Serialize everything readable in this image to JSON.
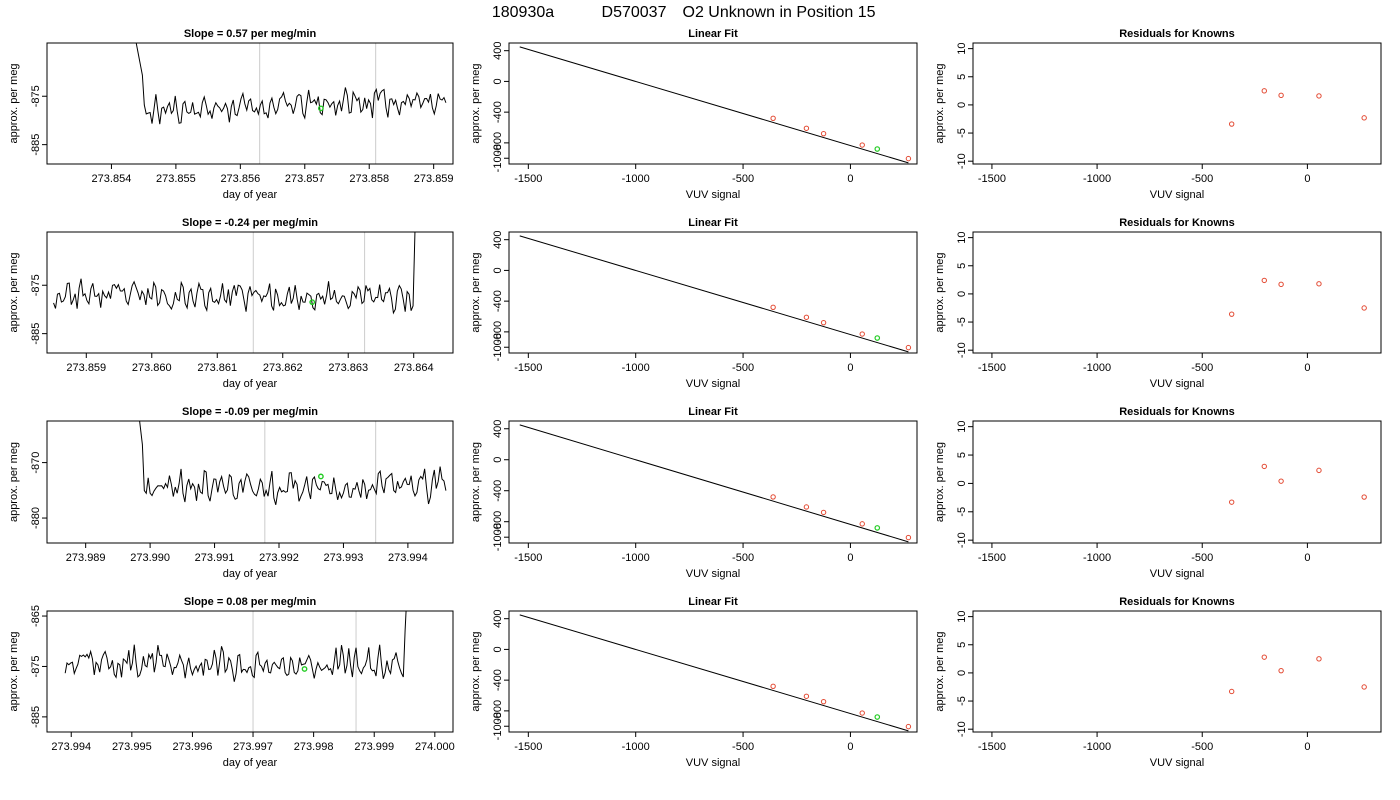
{
  "page": {
    "title_parts": [
      "180930a",
      "D570037",
      "O2 Unknown in Position  15"
    ]
  },
  "colors": {
    "trace": "#000000",
    "known_point": "#e34a33",
    "unknown_point": "#22cc22",
    "vline": "#cccccc"
  },
  "chart_data": [
    {
      "type": "line",
      "row": 1,
      "title": "Slope =  0.57  per meg/min",
      "xlabel": "day of year",
      "ylabel": "approx. per meg",
      "xlim": [
        273.853,
        273.8593
      ],
      "ylim": [
        -889,
        -864
      ],
      "xticks": [
        "273.854",
        "273.855",
        "273.856",
        "273.857",
        "273.858",
        "273.859"
      ],
      "yticks": [
        "-885",
        "-875"
      ],
      "vlines": [
        273.8563,
        273.8581
      ],
      "unknown_marker": [
        273.85725,
        -877.5
      ],
      "trace": {
        "start": 273.8537,
        "end": 273.8592,
        "step": 3e-05,
        "jump_at": 273.8545,
        "high": -860,
        "base": -878.5,
        "drift": 3.0,
        "noise": 2.3,
        "seed": 11,
        "jump_side": "left"
      },
      "grid": false
    },
    {
      "type": "scatter",
      "row": 1,
      "title": "Linear Fit",
      "xlabel": "VUV signal",
      "ylabel": "approx. per meg",
      "xlim": [
        -1590,
        310
      ],
      "ylim": [
        -1075,
        500
      ],
      "xticks": [
        "-1500",
        "-1000",
        "-500",
        "0"
      ],
      "yticks": [
        "-1000",
        "-800",
        "-400",
        "0",
        "400"
      ],
      "fit_line": [
        [
          -1540,
          450
        ],
        [
          270,
          -1060
        ]
      ],
      "knowns": [
        [
          -360,
          -480
        ],
        [
          -205,
          -610
        ],
        [
          -125,
          -680
        ],
        [
          55,
          -828
        ],
        [
          270,
          -1005
        ]
      ],
      "unknowns": [
        [
          125,
          -880
        ]
      ],
      "grid": false
    },
    {
      "type": "scatter",
      "row": 1,
      "title": "Residuals for Knowns",
      "xlabel": "VUV signal",
      "ylabel": "approx. per meg",
      "xlim": [
        -1590,
        350
      ],
      "ylim": [
        -10.5,
        11
      ],
      "xticks": [
        "-1500",
        "-1000",
        "-500",
        "0"
      ],
      "yticks": [
        "-10",
        "-5",
        "0",
        "5",
        "10"
      ],
      "residuals": [
        [
          -360,
          -3.4
        ],
        [
          -205,
          2.5
        ],
        [
          -125,
          1.7
        ],
        [
          55,
          1.6
        ],
        [
          270,
          -2.3
        ]
      ],
      "grid": false
    },
    {
      "type": "line",
      "row": 2,
      "title": "Slope =  -0.24  per meg/min",
      "xlabel": "day of year",
      "ylabel": "approx. per meg",
      "xlim": [
        273.8584,
        273.8646
      ],
      "ylim": [
        -889,
        -864
      ],
      "xticks": [
        "273.859",
        "273.860",
        "273.861",
        "273.862",
        "273.863",
        "273.864"
      ],
      "yticks": [
        "-885",
        "-875"
      ],
      "vlines": [
        273.86155,
        273.86325
      ],
      "unknown_marker": [
        273.86245,
        -878.5
      ],
      "trace": {
        "start": 273.8585,
        "end": 273.8641,
        "step": 3e-05,
        "jump_at": 273.864,
        "high": -860,
        "base": -877.0,
        "drift": -0.5,
        "noise": 2.3,
        "seed": 23,
        "jump_side": "right"
      },
      "grid": false
    },
    {
      "type": "scatter",
      "row": 2,
      "title": "Linear Fit",
      "xlabel": "VUV signal",
      "ylabel": "approx. per meg",
      "xlim": [
        -1590,
        310
      ],
      "ylim": [
        -1075,
        500
      ],
      "xticks": [
        "-1500",
        "-1000",
        "-500",
        "0"
      ],
      "yticks": [
        "-1000",
        "-800",
        "-400",
        "0",
        "400"
      ],
      "fit_line": [
        [
          -1540,
          450
        ],
        [
          270,
          -1060
        ]
      ],
      "knowns": [
        [
          -360,
          -480
        ],
        [
          -205,
          -610
        ],
        [
          -125,
          -680
        ],
        [
          55,
          -828
        ],
        [
          270,
          -1005
        ]
      ],
      "unknowns": [
        [
          125,
          -880
        ]
      ],
      "grid": false
    },
    {
      "type": "scatter",
      "row": 2,
      "title": "Residuals for Knowns",
      "xlabel": "VUV signal",
      "ylabel": "approx. per meg",
      "xlim": [
        -1590,
        350
      ],
      "ylim": [
        -10.5,
        11
      ],
      "xticks": [
        "-1500",
        "-1000",
        "-500",
        "0"
      ],
      "yticks": [
        "-10",
        "-5",
        "0",
        "5",
        "10"
      ],
      "residuals": [
        [
          -360,
          -3.6
        ],
        [
          -205,
          2.4
        ],
        [
          -125,
          1.7
        ],
        [
          55,
          1.8
        ],
        [
          270,
          -2.5
        ]
      ],
      "grid": false
    },
    {
      "type": "line",
      "row": 3,
      "title": "Slope =  -0.09  per meg/min",
      "xlabel": "day of year",
      "ylabel": "approx. per meg",
      "xlim": [
        273.9884,
        273.9947
      ],
      "ylim": [
        -884.5,
        -862.5
      ],
      "xticks": [
        "273.989",
        "273.990",
        "273.991",
        "273.992",
        "273.993",
        "273.994"
      ],
      "yticks": [
        "-880",
        "-870"
      ],
      "vlines": [
        273.99178,
        273.9935
      ],
      "unknown_marker": [
        273.99265,
        -872.5
      ],
      "trace": {
        "start": 273.9894,
        "end": 273.9946,
        "step": 3e-05,
        "jump_at": 273.9899,
        "high": -858,
        "base": -874.5,
        "drift": 0.5,
        "noise": 2.2,
        "seed": 37,
        "jump_side": "left"
      },
      "grid": false
    },
    {
      "type": "scatter",
      "row": 3,
      "title": "Linear Fit",
      "xlabel": "VUV signal",
      "ylabel": "approx. per meg",
      "xlim": [
        -1590,
        310
      ],
      "ylim": [
        -1075,
        500
      ],
      "xticks": [
        "-1500",
        "-1000",
        "-500",
        "0"
      ],
      "yticks": [
        "-1000",
        "-800",
        "-400",
        "0",
        "400"
      ],
      "fit_line": [
        [
          -1540,
          450
        ],
        [
          270,
          -1060
        ]
      ],
      "knowns": [
        [
          -360,
          -480
        ],
        [
          -205,
          -610
        ],
        [
          -125,
          -680
        ],
        [
          55,
          -828
        ],
        [
          270,
          -1005
        ]
      ],
      "unknowns": [
        [
          125,
          -880
        ]
      ],
      "grid": false
    },
    {
      "type": "scatter",
      "row": 3,
      "title": "Residuals for Knowns",
      "xlabel": "VUV signal",
      "ylabel": "approx. per meg",
      "xlim": [
        -1590,
        350
      ],
      "ylim": [
        -10.5,
        11
      ],
      "xticks": [
        "-1500",
        "-1000",
        "-500",
        "0"
      ],
      "yticks": [
        "-10",
        "-5",
        "0",
        "5",
        "10"
      ],
      "residuals": [
        [
          -360,
          -3.3
        ],
        [
          -205,
          3.0
        ],
        [
          -125,
          0.4
        ],
        [
          55,
          2.3
        ],
        [
          270,
          -2.4
        ]
      ],
      "grid": false
    },
    {
      "type": "line",
      "row": 4,
      "title": "Slope =  0.08  per meg/min",
      "xlabel": "day of year",
      "ylabel": "approx. per meg",
      "xlim": [
        273.9936,
        274.0003
      ],
      "ylim": [
        -888,
        -864
      ],
      "xticks": [
        "273.994",
        "273.995",
        "273.996",
        "273.997",
        "273.998",
        "273.999",
        "274.000"
      ],
      "yticks": [
        "-885",
        "-875",
        "-865"
      ],
      "vlines": [
        273.997,
        273.9987
      ],
      "unknown_marker": [
        273.99785,
        -875.5
      ],
      "trace": {
        "start": 273.9939,
        "end": 273.99965,
        "step": 3e-05,
        "jump_at": 273.9995,
        "high": -860,
        "base": -874.5,
        "drift": 0.0,
        "noise": 2.4,
        "seed": 53,
        "jump_side": "right"
      },
      "grid": false
    },
    {
      "type": "scatter",
      "row": 4,
      "title": "Linear Fit",
      "xlabel": "VUV signal",
      "ylabel": "approx. per meg",
      "xlim": [
        -1590,
        310
      ],
      "ylim": [
        -1075,
        500
      ],
      "xticks": [
        "-1500",
        "-1000",
        "-500",
        "0"
      ],
      "yticks": [
        "-1000",
        "-800",
        "-400",
        "0",
        "400"
      ],
      "fit_line": [
        [
          -1540,
          450
        ],
        [
          270,
          -1060
        ]
      ],
      "knowns": [
        [
          -360,
          -480
        ],
        [
          -205,
          -610
        ],
        [
          -125,
          -680
        ],
        [
          55,
          -828
        ],
        [
          270,
          -1005
        ]
      ],
      "unknowns": [
        [
          125,
          -880
        ]
      ],
      "grid": false
    },
    {
      "type": "scatter",
      "row": 4,
      "title": "Residuals for Knowns",
      "xlabel": "VUV signal",
      "ylabel": "approx. per meg",
      "xlim": [
        -1590,
        350
      ],
      "ylim": [
        -10.5,
        11
      ],
      "xticks": [
        "-1500",
        "-1000",
        "-500",
        "0"
      ],
      "yticks": [
        "-10",
        "-5",
        "0",
        "5",
        "10"
      ],
      "residuals": [
        [
          -360,
          -3.3
        ],
        [
          -205,
          2.8
        ],
        [
          -125,
          0.4
        ],
        [
          55,
          2.5
        ],
        [
          270,
          -2.5
        ]
      ],
      "grid": false
    }
  ]
}
